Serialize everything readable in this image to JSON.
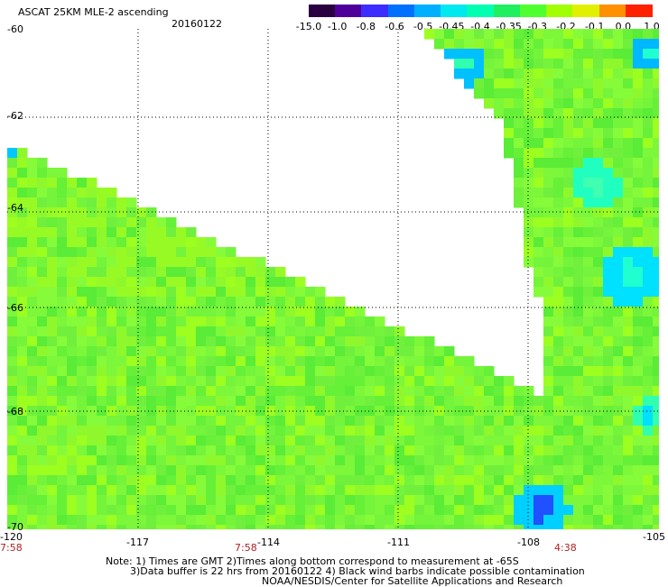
{
  "header": {
    "title": "ASCAT 25KM MLE-2 ascending",
    "date": "20160122"
  },
  "colorbar": {
    "labels": [
      "-15.0",
      "-1.0",
      "-0.8",
      "-0.6",
      "-0.5",
      "-0.45",
      "-0.4",
      "-0.35",
      "-0.3",
      "-0.2",
      "-0.1",
      "0.0",
      "1.0"
    ],
    "colors": [
      "#2a0040",
      "#50009a",
      "#3c2cff",
      "#0070ff",
      "#00b0ff",
      "#00e8f0",
      "#00ffb0",
      "#20f060",
      "#50ff30",
      "#a0ff00",
      "#e0f000",
      "#ff9000",
      "#ff2000"
    ]
  },
  "map": {
    "lat_labels": [
      "-60",
      "-62",
      "-64",
      "-66",
      "-68",
      "-70"
    ],
    "lon_labels": [
      "-120",
      "-117",
      "-114",
      "-111",
      "-108",
      "-105"
    ],
    "time_labels": [
      "7:58",
      "7:58",
      "4:38"
    ]
  },
  "notes": {
    "line1": "Note: 1) Times are GMT 2)Times along bottom correspond to measurement at -65S",
    "line2": "3)Data buffer is 22 hrs from 20160122 4) Black wind barbs indicate possible contamination",
    "line3": "NOAA/NESDIS/Center for Satellite Applications and Research"
  }
}
